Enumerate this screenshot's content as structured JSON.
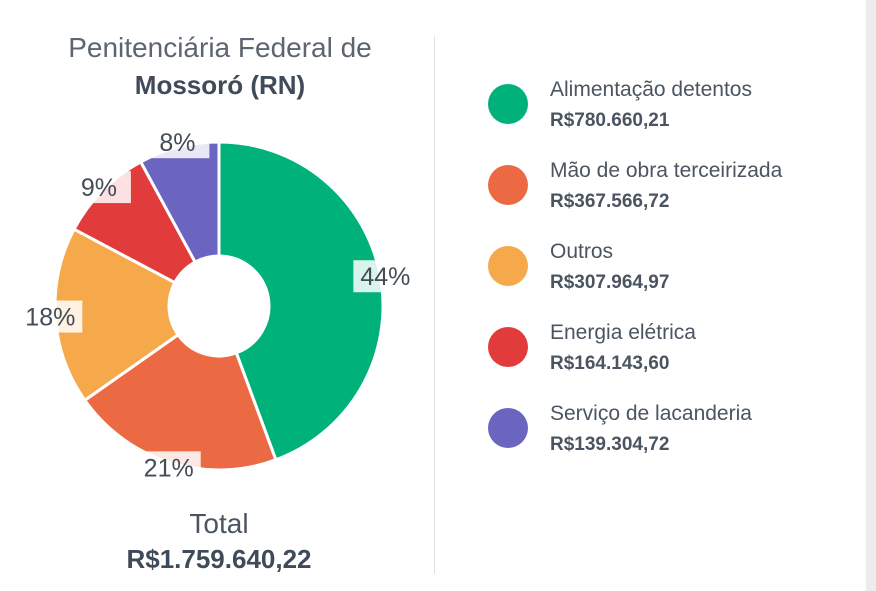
{
  "chart_data": {
    "type": "pie",
    "title": "Penitenciária Federal de",
    "subtitle": "Mossoró (RN)",
    "categories": [
      "Alimentação detentos",
      "Mão de obra terceirizada",
      "Outros",
      "Energia elétrica",
      "Serviço de lacanderia"
    ],
    "values": [
      780660.21,
      367566.72,
      307964.97,
      164143.6,
      139304.72
    ],
    "value_labels": [
      "R$780.660,21",
      "R$367.566,72",
      "R$307.964,97",
      "R$164.143,60",
      "R$139.304,72"
    ],
    "percent_labels": [
      "44%",
      "21%",
      "18%",
      "9%",
      "8%"
    ],
    "colors": [
      "#00b27a",
      "#ec6a43",
      "#f5a94a",
      "#e23b3b",
      "#6b65c1"
    ],
    "legend_position": "right",
    "total_label": "Total",
    "total_value": "R$1.759.640,22"
  }
}
